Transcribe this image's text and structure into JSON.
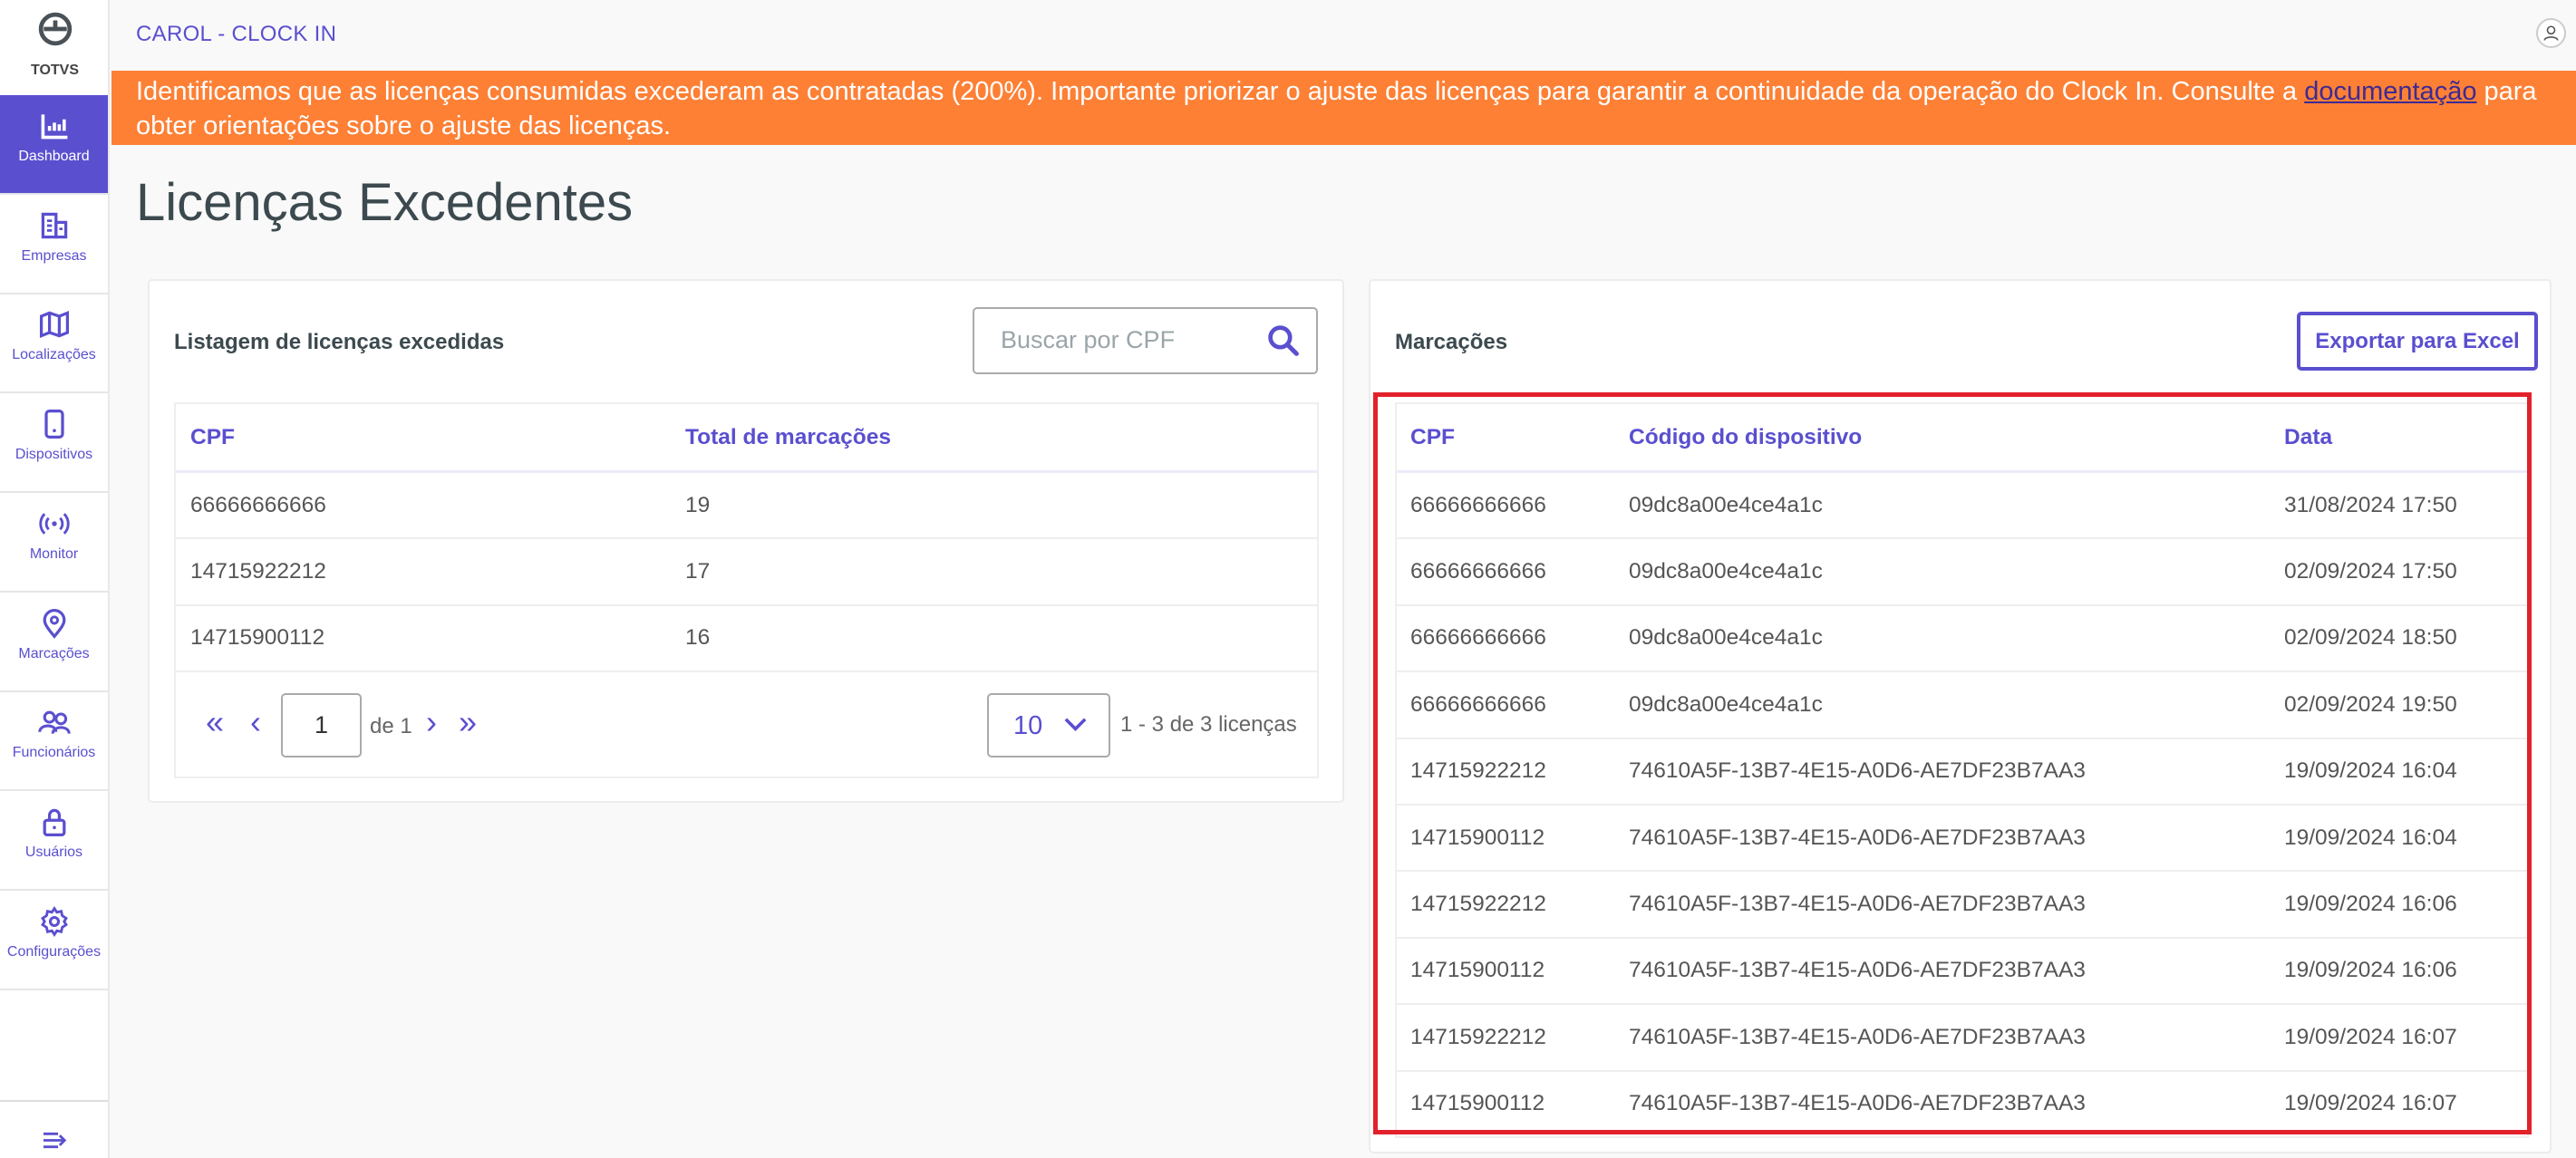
{
  "brand": {
    "logo_text": "TOTVS"
  },
  "sidebar": {
    "items": [
      {
        "label": "Dashboard",
        "icon": "bar-chart-icon",
        "active": true
      },
      {
        "label": "Empresas",
        "icon": "building-icon"
      },
      {
        "label": "Localizações",
        "icon": "map-icon"
      },
      {
        "label": "Dispositivos",
        "icon": "device-icon"
      },
      {
        "label": "Monitor",
        "icon": "broadcast-icon"
      },
      {
        "label": "Marcações",
        "icon": "location-pin-icon"
      },
      {
        "label": "Funcionários",
        "icon": "users-icon"
      },
      {
        "label": "Usuários",
        "icon": "lock-icon"
      },
      {
        "label": "Configurações",
        "icon": "gear-icon"
      }
    ],
    "collapse_icon": "expand-menu-icon"
  },
  "header": {
    "app_title": "CAROL - CLOCK IN",
    "user_icon": "user-icon"
  },
  "banner": {
    "text": "Identificamos que as licenças consumidas excederam as contratadas (200%). Importante priorizar o ajuste das licenças para garantir a continuidade da operação do Clock In. Consulte a ",
    "link": "documentação",
    "text_after": " para obter orientações sobre o ajuste das licenças.",
    "color": "#fd8035"
  },
  "page": {
    "title": "Licenças Excedentes"
  },
  "left_card": {
    "title": "Listagem de licenças excedidas",
    "search_placeholder": "Buscar por CPF",
    "columns": [
      "CPF",
      "Total de marcações"
    ],
    "rows": [
      [
        "66666666666",
        "19"
      ],
      [
        "14715922212",
        "17"
      ],
      [
        "14715900112",
        "16"
      ]
    ],
    "pagination": {
      "current_page": "1",
      "of_label": "de 1",
      "page_size": "10",
      "summary": "1 - 3 de 3 licenças"
    }
  },
  "right_card": {
    "title": "Marcações",
    "export_label": "Exportar para Excel",
    "columns": [
      "CPF",
      "Código do dispositivo",
      "Data"
    ],
    "rows": [
      [
        "66666666666",
        "09dc8a00e4ce4a1c",
        "31/08/2024 17:50"
      ],
      [
        "66666666666",
        "09dc8a00e4ce4a1c",
        "02/09/2024 17:50"
      ],
      [
        "66666666666",
        "09dc8a00e4ce4a1c",
        "02/09/2024 18:50"
      ],
      [
        "66666666666",
        "09dc8a00e4ce4a1c",
        "02/09/2024 19:50"
      ],
      [
        "14715922212",
        "74610A5F-13B7-4E15-A0D6-AE7DF23B7AA3",
        "19/09/2024 16:04"
      ],
      [
        "14715900112",
        "74610A5F-13B7-4E15-A0D6-AE7DF23B7AA3",
        "19/09/2024 16:04"
      ],
      [
        "14715922212",
        "74610A5F-13B7-4E15-A0D6-AE7DF23B7AA3",
        "19/09/2024 16:06"
      ],
      [
        "14715900112",
        "74610A5F-13B7-4E15-A0D6-AE7DF23B7AA3",
        "19/09/2024 16:06"
      ],
      [
        "14715922212",
        "74610A5F-13B7-4E15-A0D6-AE7DF23B7AA3",
        "19/09/2024 16:07"
      ],
      [
        "14715900112",
        "74610A5F-13B7-4E15-A0D6-AE7DF23B7AA3",
        "19/09/2024 16:07"
      ]
    ],
    "highlight_color": "#e3212b"
  },
  "colors": {
    "accent": "#5a4fcf",
    "text": "#555555"
  }
}
